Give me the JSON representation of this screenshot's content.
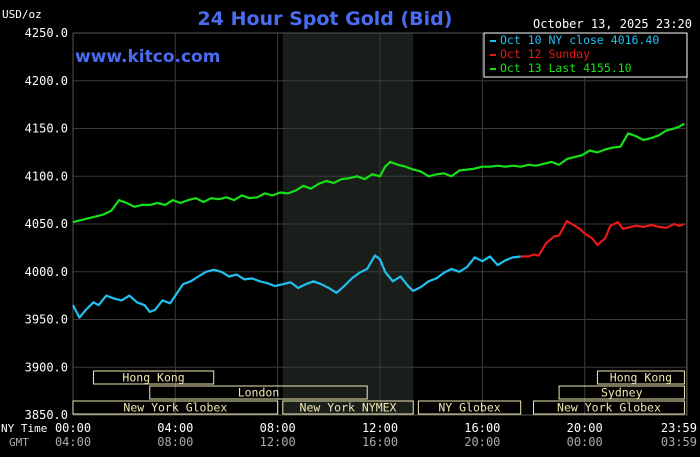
{
  "colors": {
    "background": "#000000",
    "plot_bg": "#000000",
    "night_band": "#1a1e1a",
    "grid": "#3a3a3a",
    "axis_text": "#ffffff",
    "title": "#4a6cf0",
    "kitco": "#4a6cf0",
    "session_box": "#f0e8b0",
    "session_text": "#000000",
    "oct10": "#22c0f0",
    "oct12": "#e81818",
    "oct13": "#18e018"
  },
  "header": {
    "units": "USD/oz",
    "title": "24 Hour Spot Gold (Bid)",
    "timestamp": "October 13, 2025 23:20",
    "watermark": "www.kitco.com"
  },
  "legend": {
    "items": [
      {
        "label": "Oct 10 NY close 4016.40",
        "color_key": "oct10"
      },
      {
        "label": "Oct 12 Sunday",
        "color_key": "oct12"
      },
      {
        "label": "Oct 13 Last 4155.10",
        "color_key": "oct13"
      }
    ]
  },
  "footer": {
    "ny_time_label": "NY Time",
    "gmt_label": "GMT",
    "ny_ticks": [
      "00:00",
      "04:00",
      "08:00",
      "12:00",
      "16:00",
      "20:00",
      "23:59"
    ],
    "gmt_ticks": [
      "04:00",
      "08:00",
      "12:00",
      "16:00",
      "20:00",
      "00:00",
      "03:59"
    ]
  },
  "sessions": {
    "row1": [
      {
        "label": "Hong Kong",
        "start": 0.8,
        "end": 5.5
      },
      {
        "label": "Hong Kong",
        "start": 20.5,
        "end": 23.9
      }
    ],
    "row2": [
      {
        "label": "London",
        "start": 3.0,
        "end": 11.5
      },
      {
        "label": "Sydney",
        "start": 19.0,
        "end": 23.9
      }
    ],
    "row3": [
      {
        "label": "New York Globex",
        "start": 0,
        "end": 8.0
      },
      {
        "label": "New York NYMEX",
        "start": 8.2,
        "end": 13.3
      },
      {
        "label": "NY Globex",
        "start": 13.5,
        "end": 17.5
      },
      {
        "label": "New York Globex",
        "start": 18.0,
        "end": 23.9
      }
    ]
  },
  "chart_data": {
    "type": "line",
    "title": "24 Hour Spot Gold (Bid)",
    "ylabel": "USD/oz",
    "xlabel": "NY Time",
    "xlim": [
      0,
      24
    ],
    "ylim": [
      3850,
      4250
    ],
    "yticks": [
      "4250.0",
      "4200.0",
      "4150.0",
      "4100.0",
      "4050.0",
      "4000.0",
      "3950.0",
      "3900.0",
      "3850.0"
    ],
    "ytick_values": [
      4250,
      4200,
      4150,
      4100,
      4050,
      4000,
      3950,
      3900,
      3850
    ],
    "xtick_values": [
      0,
      4,
      8,
      12,
      16,
      20,
      23.98
    ],
    "grid": true,
    "shaded_hours": [
      8.2,
      13.3
    ],
    "legend_position": "top-right",
    "series": [
      {
        "name": "Oct 10 NY close 4016.40",
        "color_key": "oct10",
        "x": [
          0,
          0.25,
          0.5,
          0.8,
          1.0,
          1.3,
          1.6,
          1.9,
          2.2,
          2.5,
          2.8,
          3.0,
          3.2,
          3.5,
          3.8,
          4.0,
          4.3,
          4.6,
          4.9,
          5.2,
          5.5,
          5.8,
          6.1,
          6.4,
          6.7,
          7.0,
          7.3,
          7.6,
          7.9,
          8.2,
          8.5,
          8.8,
          9.1,
          9.4,
          9.7,
          10.0,
          10.3,
          10.6,
          10.9,
          11.2,
          11.5,
          11.8,
          12.0,
          12.2,
          12.5,
          12.8,
          13.1,
          13.3,
          13.6,
          13.9,
          14.2,
          14.5,
          14.8,
          15.1,
          15.4,
          15.7,
          16.0,
          16.3,
          16.6,
          16.9,
          17.2,
          17.5
        ],
        "y": [
          3965,
          3952,
          3960,
          3968,
          3965,
          3975,
          3972,
          3970,
          3975,
          3968,
          3965,
          3958,
          3960,
          3970,
          3967,
          3975,
          3987,
          3990,
          3995,
          4000,
          4002,
          4000,
          3995,
          3997,
          3992,
          3993,
          3990,
          3988,
          3985,
          3987,
          3989,
          3983,
          3987,
          3990,
          3987,
          3983,
          3978,
          3985,
          3993,
          3999,
          4003,
          4017,
          4013,
          4000,
          3990,
          3995,
          3985,
          3980,
          3984,
          3990,
          3993,
          3999,
          4003,
          4000,
          4005,
          4015,
          4011,
          4016,
          4007,
          4012,
          4015,
          4016
        ]
      },
      {
        "name": "Oct 12 Sunday",
        "color_key": "oct12",
        "x": [
          17.5,
          17.8,
          18.0,
          18.2,
          18.5,
          18.8,
          19.0,
          19.3,
          19.5,
          19.8,
          20.0,
          20.3,
          20.5,
          20.8,
          21.0,
          21.3,
          21.5,
          21.8,
          22.0,
          22.3,
          22.6,
          22.9,
          23.2,
          23.5,
          23.7,
          23.9
        ],
        "y": [
          4016,
          4016,
          4018,
          4017,
          4030,
          4037,
          4038,
          4053,
          4050,
          4045,
          4040,
          4035,
          4028,
          4035,
          4048,
          4052,
          4045,
          4047,
          4048,
          4047,
          4049,
          4047,
          4046,
          4050,
          4048,
          4050
        ]
      },
      {
        "name": "Oct 13 Last 4155.10",
        "color_key": "oct13",
        "x": [
          0,
          0.3,
          0.6,
          0.9,
          1.2,
          1.5,
          1.8,
          2.1,
          2.4,
          2.7,
          3.0,
          3.3,
          3.6,
          3.9,
          4.2,
          4.5,
          4.8,
          5.1,
          5.4,
          5.7,
          6.0,
          6.3,
          6.6,
          6.9,
          7.2,
          7.5,
          7.8,
          8.1,
          8.4,
          8.7,
          9.0,
          9.3,
          9.6,
          9.9,
          10.2,
          10.5,
          10.8,
          11.1,
          11.4,
          11.7,
          12.0,
          12.2,
          12.4,
          12.7,
          13.0,
          13.3,
          13.6,
          13.9,
          14.2,
          14.5,
          14.8,
          15.1,
          15.4,
          15.7,
          16.0,
          16.3,
          16.6,
          16.9,
          17.2,
          17.5,
          17.8,
          18.1,
          18.4,
          18.7,
          19.0,
          19.3,
          19.6,
          19.9,
          20.2,
          20.5,
          20.8,
          21.1,
          21.4,
          21.7,
          22.0,
          22.3,
          22.6,
          22.9,
          23.2,
          23.5,
          23.7,
          23.9
        ],
        "y": [
          4052,
          4054,
          4056,
          4058,
          4060,
          4064,
          4075,
          4072,
          4068,
          4070,
          4070,
          4072,
          4070,
          4075,
          4072,
          4075,
          4077,
          4073,
          4077,
          4076,
          4078,
          4075,
          4080,
          4077,
          4078,
          4082,
          4080,
          4083,
          4082,
          4085,
          4090,
          4087,
          4092,
          4095,
          4093,
          4097,
          4098,
          4100,
          4097,
          4102,
          4100,
          4110,
          4115,
          4112,
          4110,
          4107,
          4105,
          4100,
          4102,
          4103,
          4100,
          4106,
          4107,
          4108,
          4110,
          4110,
          4111,
          4110,
          4111,
          4110,
          4112,
          4111,
          4113,
          4115,
          4112,
          4118,
          4120,
          4122,
          4127,
          4125,
          4128,
          4130,
          4131,
          4145,
          4142,
          4138,
          4140,
          4143,
          4148,
          4150,
          4152,
          4155
        ]
      }
    ]
  }
}
